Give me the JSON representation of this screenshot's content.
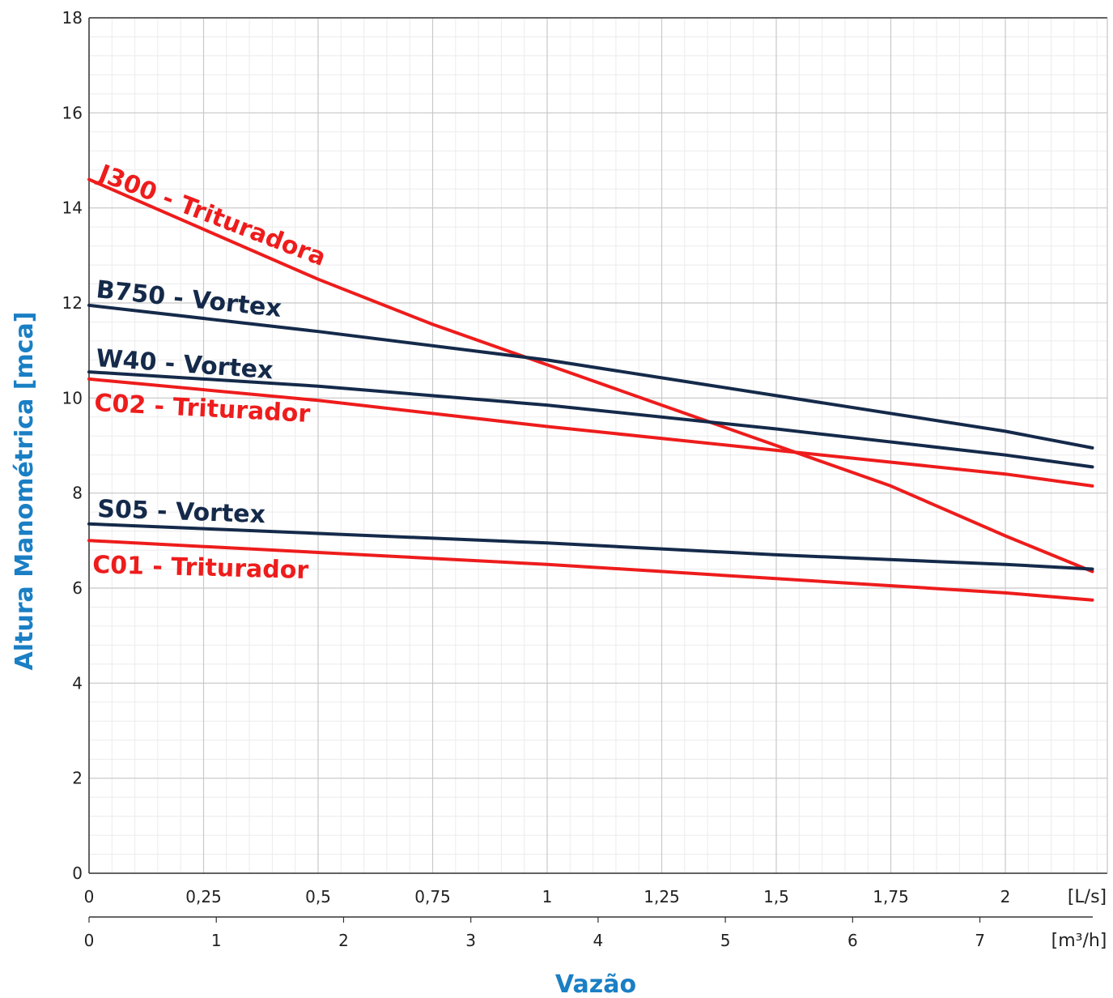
{
  "chart_data": {
    "type": "line",
    "title": "",
    "xlabel": "Vazão",
    "ylabel": "Altura Manométrica [mca]",
    "x_unit_primary": "[L/s]",
    "x_unit_secondary": "[m³/h]",
    "xlim": [
      0,
      2.2
    ],
    "ylim": [
      0,
      18
    ],
    "grid": true,
    "x_ticks": [
      "0",
      "0,25",
      "0,5",
      "0,75",
      "1",
      "1,25",
      "1,5",
      "1,75",
      "2"
    ],
    "x_ticks_secondary": [
      "0",
      "1",
      "2",
      "3",
      "4",
      "5",
      "6",
      "7"
    ],
    "y_ticks": [
      "0",
      "2",
      "4",
      "6",
      "8",
      "10",
      "12",
      "14",
      "16",
      "18"
    ],
    "colors": {
      "red": "#ee1c1c",
      "navy": "#152a4a",
      "axis_title": "#1a7fc4"
    },
    "series": [
      {
        "name": "J300 - Trituradora",
        "color": "#ee1c1c",
        "x": [
          0,
          0.25,
          0.5,
          0.75,
          1.0,
          1.25,
          1.5,
          1.75,
          2.0,
          2.19
        ],
        "y": [
          14.6,
          13.55,
          12.5,
          11.55,
          10.7,
          9.85,
          9.0,
          8.15,
          7.1,
          6.35
        ]
      },
      {
        "name": "B750 - Vortex",
        "color": "#152a4a",
        "x": [
          0,
          0.5,
          1.0,
          1.5,
          2.0,
          2.19
        ],
        "y": [
          11.95,
          11.4,
          10.8,
          10.05,
          9.3,
          8.95
        ]
      },
      {
        "name": "W40 - Vortex",
        "color": "#152a4a",
        "x": [
          0,
          0.5,
          1.0,
          1.5,
          2.0,
          2.19
        ],
        "y": [
          10.55,
          10.25,
          9.85,
          9.35,
          8.8,
          8.55
        ]
      },
      {
        "name": "C02 - Triturador",
        "color": "#ee1c1c",
        "x": [
          0,
          0.5,
          1.0,
          1.5,
          2.0,
          2.19
        ],
        "y": [
          10.4,
          9.95,
          9.4,
          8.9,
          8.4,
          8.15
        ]
      },
      {
        "name": "S05 - Vortex",
        "color": "#152a4a",
        "x": [
          0,
          0.5,
          1.0,
          1.5,
          2.0,
          2.19
        ],
        "y": [
          7.35,
          7.15,
          6.95,
          6.7,
          6.5,
          6.4
        ]
      },
      {
        "name": "C01 - Triturador",
        "color": "#ee1c1c",
        "x": [
          0,
          0.5,
          1.0,
          1.5,
          2.0,
          2.19
        ],
        "y": [
          7.0,
          6.75,
          6.5,
          6.2,
          5.9,
          5.75
        ]
      }
    ]
  }
}
